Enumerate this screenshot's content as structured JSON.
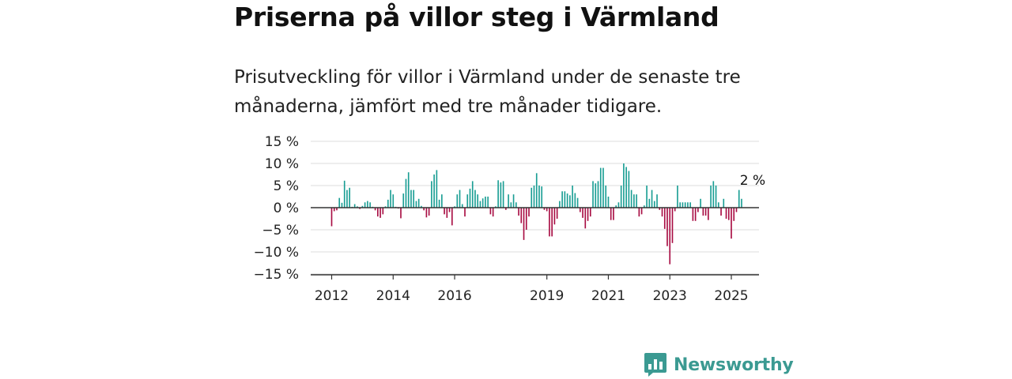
{
  "header": {
    "title": "Priserna på villor steg i Värmland",
    "subtitle": "Prisutveckling för villor i Värmland under de senaste tre månaderna, jämfört med tre månader tidigare."
  },
  "brand": {
    "name": "Newsworthy",
    "color": "#3b9a92"
  },
  "chart_data": {
    "type": "bar",
    "x_start": "2012-01",
    "x_end": "2025-06",
    "ylim": [
      -15,
      15
    ],
    "y_ticks": [
      15,
      10,
      5,
      0,
      -5,
      -10,
      -15
    ],
    "y_tick_labels": [
      "15 %",
      "10 %",
      "5 %",
      "0 %",
      "−5 %",
      "−10 %",
      "−15 %"
    ],
    "x_tick_labels": [
      "2012",
      "2014",
      "2016",
      "2019",
      "2021",
      "2023",
      "2025"
    ],
    "x_tick_years": [
      2012,
      2014,
      2016,
      2019,
      2021,
      2023,
      2025
    ],
    "grid": true,
    "colors": {
      "positive": "#1a9e94",
      "negative": "#a80d43"
    },
    "annotation": {
      "label": "2 %",
      "value": 2
    },
    "values": [
      -4.2,
      -0.8,
      -0.6,
      2.2,
      1.1,
      6.1,
      4,
      4.5,
      0.2,
      0.8,
      0.3,
      -0.3,
      0.4,
      1.2,
      1.5,
      1.2,
      0.2,
      -0.6,
      -2,
      -2.3,
      -1.5,
      0.3,
      1.8,
      4,
      3,
      0.2,
      -0.2,
      -2.4,
      3.2,
      6.5,
      8,
      4,
      4,
      1.5,
      2,
      0.4,
      -0.6,
      -2.2,
      -1.8,
      6,
      7.5,
      8.5,
      1.8,
      3,
      -1.5,
      -2.3,
      -1,
      -4,
      0.3,
      3,
      4,
      0.8,
      -2,
      3,
      4.3,
      6,
      4,
      3,
      1.5,
      2.1,
      2.5,
      2.5,
      -1.5,
      -2,
      0.3,
      6.2,
      5.7,
      6,
      -0.5,
      3,
      1.2,
      3,
      1.2,
      -1.8,
      -3.5,
      -7.3,
      -5,
      -2,
      4.5,
      5,
      7.8,
      5,
      4.8,
      -0.5,
      -0.8,
      -6.5,
      -6.5,
      -3.8,
      -2.5,
      1.5,
      3.7,
      3.7,
      3.2,
      2.8,
      5,
      3.3,
      2.2,
      -1,
      -2.3,
      -4.7,
      -3,
      -2,
      6,
      5.5,
      6,
      9,
      9,
      5,
      2.5,
      -2.8,
      -2.8,
      0.5,
      1.2,
      5,
      10,
      9.2,
      8.3,
      4,
      3,
      3,
      -2,
      -1.5,
      0.5,
      5,
      2,
      4,
      1.5,
      3,
      -0.5,
      -2,
      -4.8,
      -8.7,
      -12.8,
      -8,
      -0.8,
      5,
      1.2,
      1.2,
      1.2,
      1.2,
      1.2,
      -3,
      -3,
      -1,
      2,
      -1.8,
      -1.8,
      -2.8,
      5,
      6,
      5,
      1.2,
      -1.8,
      2,
      -2.5,
      -2.8,
      -7,
      -3,
      -1,
      4,
      2
    ]
  }
}
